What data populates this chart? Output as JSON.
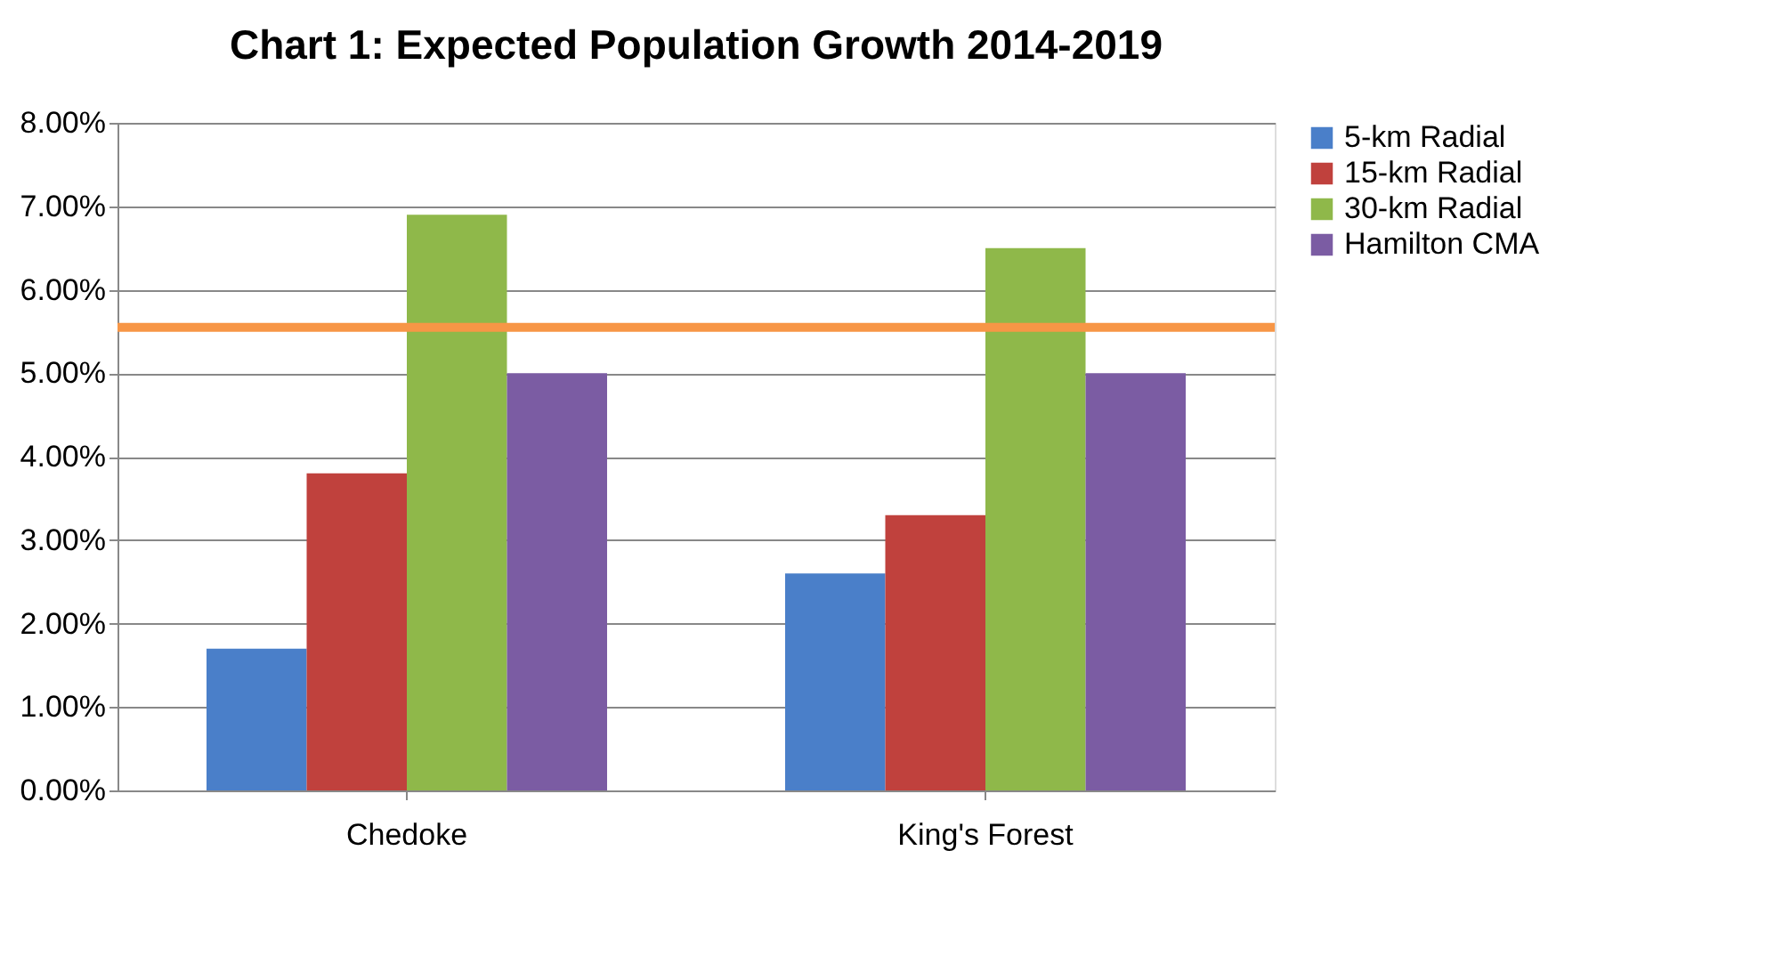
{
  "chart_data": {
    "type": "bar",
    "title": "Chart 1: Expected Population Growth 2014-2019",
    "categories": [
      "Chedoke",
      "King's Forest"
    ],
    "series": [
      {
        "name": "5-km Radial",
        "color": "#4a7fc9",
        "values": [
          1.7,
          2.6
        ]
      },
      {
        "name": "15-km Radial",
        "color": "#c0413d",
        "values": [
          3.8,
          3.3
        ]
      },
      {
        "name": "30-km Radial",
        "color": "#8fb84a",
        "values": [
          6.9,
          6.5
        ]
      },
      {
        "name": "Hamilton CMA",
        "color": "#7b5ca3",
        "values": [
          5.0,
          5.0
        ]
      }
    ],
    "ylim": [
      0,
      8
    ],
    "yticks": [
      {
        "value": 0,
        "label": "0.00%"
      },
      {
        "value": 1,
        "label": "1.00%"
      },
      {
        "value": 2,
        "label": "2.00%"
      },
      {
        "value": 3,
        "label": "3.00%"
      },
      {
        "value": 4,
        "label": "4.00%"
      },
      {
        "value": 5,
        "label": "5.00%"
      },
      {
        "value": 6,
        "label": "6.00%"
      },
      {
        "value": 7,
        "label": "7.00%"
      },
      {
        "value": 8,
        "label": "8.00%"
      }
    ],
    "ref_lines": [
      {
        "axis": "y",
        "value": 5.55,
        "color": "#f79646"
      }
    ],
    "grid": "y",
    "legend": "right"
  }
}
